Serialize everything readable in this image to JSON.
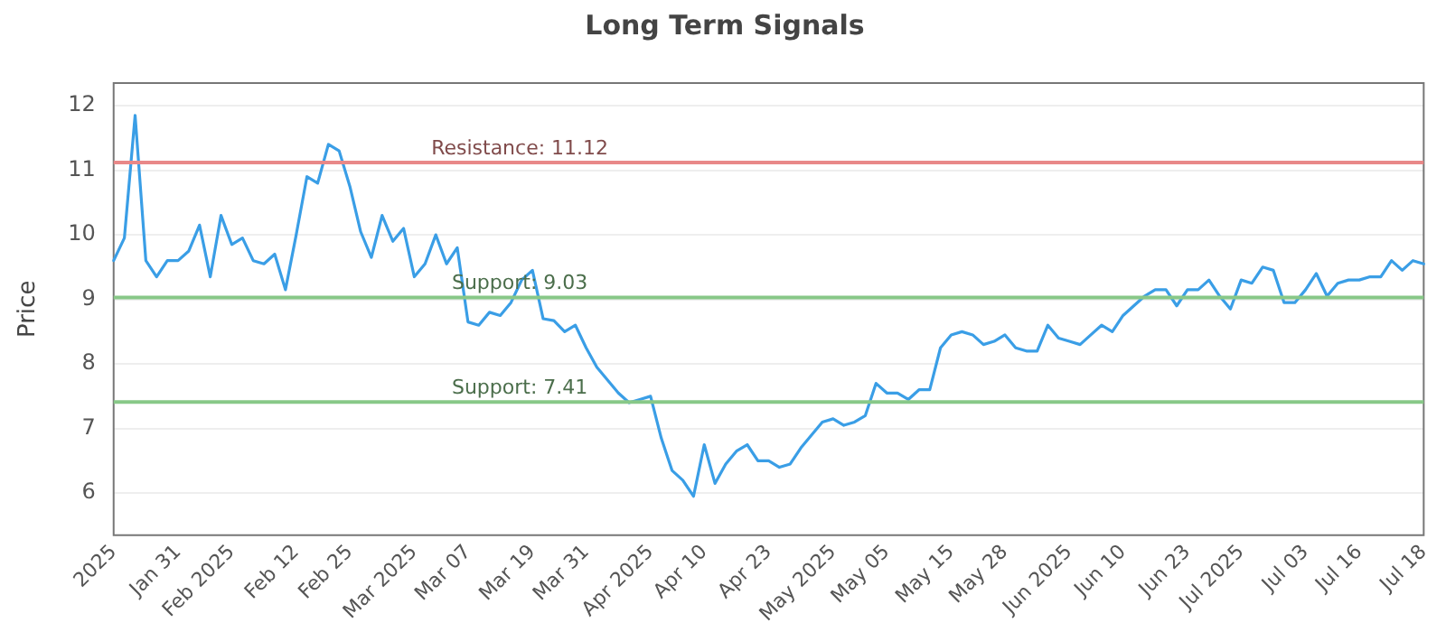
{
  "chart_data": {
    "type": "line",
    "title": "Long Term Signals",
    "ylabel": "Price",
    "categories": [
      "2025",
      null,
      null,
      null,
      null,
      null,
      "Jan 31",
      null,
      null,
      null,
      null,
      "Feb 2025",
      null,
      null,
      null,
      null,
      null,
      "Feb 12",
      null,
      null,
      null,
      null,
      "Feb 25",
      null,
      null,
      null,
      null,
      null,
      "Mar 2025",
      null,
      null,
      null,
      null,
      "Mar 07",
      null,
      null,
      null,
      null,
      null,
      "Mar 19",
      null,
      null,
      null,
      null,
      "Mar 31",
      null,
      null,
      null,
      null,
      null,
      "Apr 2025",
      null,
      null,
      null,
      null,
      "Apr 10",
      null,
      null,
      null,
      null,
      null,
      "Apr 23",
      null,
      null,
      null,
      null,
      null,
      "May 2025",
      null,
      null,
      null,
      null,
      "May 05",
      null,
      null,
      null,
      null,
      null,
      "May 15",
      null,
      null,
      null,
      null,
      "May 28",
      null,
      null,
      null,
      null,
      null,
      "Jun 2025",
      null,
      null,
      null,
      null,
      "Jun 10",
      null,
      null,
      null,
      null,
      null,
      "Jun 23",
      null,
      null,
      null,
      null,
      "Jul 2025",
      null,
      null,
      null,
      null,
      null,
      "Jul 03",
      null,
      null,
      null,
      null,
      "Jul 16",
      null,
      null,
      null,
      null,
      null,
      "Jul 18"
    ],
    "series": [
      {
        "color": "#3a9ee6",
        "values": [
          9.6,
          9.95,
          11.85,
          9.6,
          9.35,
          9.6,
          9.6,
          9.75,
          10.15,
          9.35,
          10.3,
          9.85,
          9.95,
          9.6,
          9.55,
          9.7,
          9.15,
          10.0,
          10.9,
          10.8,
          11.4,
          11.3,
          10.75,
          10.05,
          9.65,
          10.3,
          9.9,
          10.1,
          9.35,
          9.55,
          10.0,
          9.55,
          9.8,
          8.65,
          8.6,
          8.8,
          8.75,
          8.95,
          9.3,
          9.45,
          8.7,
          8.67,
          8.5,
          8.6,
          8.25,
          7.95,
          7.75,
          7.55,
          7.4,
          7.45,
          7.5,
          6.85,
          6.35,
          6.2,
          5.95,
          6.75,
          6.15,
          6.45,
          6.65,
          6.75,
          6.5,
          6.5,
          6.4,
          6.45,
          6.7,
          6.9,
          7.1,
          7.15,
          7.05,
          7.1,
          7.2,
          7.7,
          7.55,
          7.55,
          7.45,
          7.6,
          7.6,
          8.25,
          8.45,
          8.5,
          8.45,
          8.3,
          8.35,
          8.45,
          8.25,
          8.2,
          8.2,
          8.6,
          8.4,
          8.35,
          8.3,
          8.45,
          8.6,
          8.5,
          8.75,
          8.9,
          9.05,
          9.15,
          9.15,
          8.9,
          9.15,
          9.15,
          9.3,
          9.05,
          8.85,
          9.3,
          9.25,
          9.5,
          9.45,
          8.95,
          8.95,
          9.15,
          9.4,
          9.05,
          9.25,
          9.3,
          9.3,
          9.35,
          9.35,
          9.6,
          9.45,
          9.6,
          9.55
        ]
      }
    ],
    "ylim": [
      5.35,
      12.35
    ],
    "yticks": [
      6,
      7,
      8,
      9,
      10,
      11,
      12
    ],
    "grid": "y",
    "legend": false,
    "marker": "none",
    "line_style": "solid",
    "ref_lines": [
      {
        "axis": "y",
        "value": 11.12,
        "label": "Resistance: 11.12",
        "color": "#e88888"
      },
      {
        "axis": "y",
        "value": 9.03,
        "label": "Support: 9.03",
        "color": "#88c888"
      },
      {
        "axis": "y",
        "value": 7.41,
        "label": "Support: 7.41",
        "color": "#88c888"
      }
    ]
  }
}
